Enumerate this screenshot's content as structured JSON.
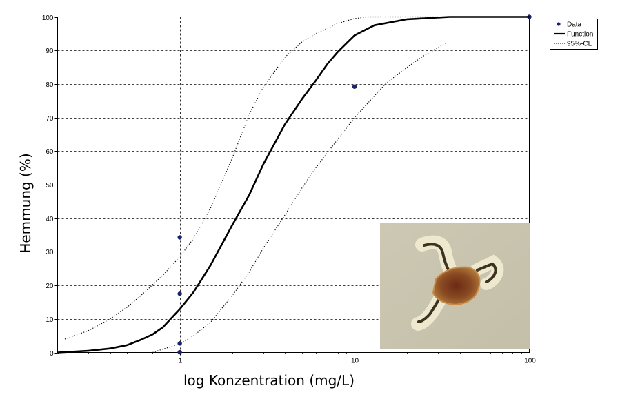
{
  "chart_data": {
    "type": "scatter",
    "xlabel": "log Konzentration (mg/L)",
    "ylabel": "Hemmung (%)",
    "x_scale": "log",
    "xlim": [
      0.2,
      100
    ],
    "ylim": [
      0,
      100
    ],
    "grid": true,
    "legend_position": "top-right",
    "x_ticks": [
      {
        "value": 1,
        "label": "1"
      },
      {
        "value": 10,
        "label": "10"
      },
      {
        "value": 100,
        "label": "100"
      }
    ],
    "y_ticks": [
      {
        "value": 0,
        "label": "0"
      },
      {
        "value": 10,
        "label": "10"
      },
      {
        "value": 20,
        "label": "20"
      },
      {
        "value": 30,
        "label": "30"
      },
      {
        "value": 40,
        "label": "40"
      },
      {
        "value": 50,
        "label": "50"
      },
      {
        "value": 60,
        "label": "60"
      },
      {
        "value": 70,
        "label": "70"
      },
      {
        "value": 80,
        "label": "80"
      },
      {
        "value": 90,
        "label": "90"
      },
      {
        "value": 100,
        "label": "100"
      }
    ],
    "legend": [
      {
        "label": "Data",
        "style": "marker"
      },
      {
        "label": "Function",
        "style": "solid"
      },
      {
        "label": "95%-CL",
        "style": "dotted"
      }
    ],
    "series": [
      {
        "name": "Data",
        "kind": "points",
        "color": "#1a2470",
        "points": [
          {
            "x": 1,
            "y": 34.3
          },
          {
            "x": 1,
            "y": 17.5
          },
          {
            "x": 1,
            "y": 2.7
          },
          {
            "x": 1,
            "y": 0.1
          },
          {
            "x": 10,
            "y": 79.2
          },
          {
            "x": 100,
            "y": 100
          }
        ]
      },
      {
        "name": "Function",
        "kind": "line",
        "color": "#000000",
        "points": [
          {
            "x": 0.2,
            "y": 0
          },
          {
            "x": 0.3,
            "y": 0.5
          },
          {
            "x": 0.4,
            "y": 1.2
          },
          {
            "x": 0.5,
            "y": 2.2
          },
          {
            "x": 0.6,
            "y": 3.8
          },
          {
            "x": 0.7,
            "y": 5.4
          },
          {
            "x": 0.8,
            "y": 7.5
          },
          {
            "x": 1.0,
            "y": 12.9
          },
          {
            "x": 1.2,
            "y": 18
          },
          {
            "x": 1.5,
            "y": 26
          },
          {
            "x": 2.0,
            "y": 38
          },
          {
            "x": 2.5,
            "y": 47
          },
          {
            "x": 3.0,
            "y": 56
          },
          {
            "x": 4.0,
            "y": 68
          },
          {
            "x": 5.0,
            "y": 75.5
          },
          {
            "x": 6.0,
            "y": 81
          },
          {
            "x": 7.0,
            "y": 86
          },
          {
            "x": 8.0,
            "y": 89.5
          },
          {
            "x": 10,
            "y": 94.5
          },
          {
            "x": 13,
            "y": 97.5
          },
          {
            "x": 20,
            "y": 99.3
          },
          {
            "x": 35,
            "y": 100
          },
          {
            "x": 100,
            "y": 100
          }
        ]
      },
      {
        "name": "95%-CL upper",
        "kind": "dotted",
        "color": "#000000",
        "points": [
          {
            "x": 0.22,
            "y": 4
          },
          {
            "x": 0.3,
            "y": 6.5
          },
          {
            "x": 0.4,
            "y": 10
          },
          {
            "x": 0.5,
            "y": 13.5
          },
          {
            "x": 0.6,
            "y": 17
          },
          {
            "x": 0.8,
            "y": 23
          },
          {
            "x": 1.0,
            "y": 28.5
          },
          {
            "x": 1.2,
            "y": 34
          },
          {
            "x": 1.5,
            "y": 43
          },
          {
            "x": 2.0,
            "y": 58
          },
          {
            "x": 2.5,
            "y": 71
          },
          {
            "x": 3.0,
            "y": 79
          },
          {
            "x": 4.0,
            "y": 88
          },
          {
            "x": 5.0,
            "y": 92.5
          },
          {
            "x": 6.0,
            "y": 95
          },
          {
            "x": 8.0,
            "y": 98
          },
          {
            "x": 10,
            "y": 99.5
          },
          {
            "x": 12,
            "y": 100
          },
          {
            "x": 30,
            "y": 100
          }
        ]
      },
      {
        "name": "95%-CL lower",
        "kind": "dotted",
        "color": "#000000",
        "points": [
          {
            "x": 0.7,
            "y": 0
          },
          {
            "x": 0.8,
            "y": 1
          },
          {
            "x": 1.0,
            "y": 2.5
          },
          {
            "x": 1.2,
            "y": 5
          },
          {
            "x": 1.5,
            "y": 9
          },
          {
            "x": 2.0,
            "y": 17
          },
          {
            "x": 2.5,
            "y": 24
          },
          {
            "x": 3.0,
            "y": 31
          },
          {
            "x": 4.0,
            "y": 41
          },
          {
            "x": 5.0,
            "y": 49
          },
          {
            "x": 6.0,
            "y": 55
          },
          {
            "x": 7.0,
            "y": 59.5
          },
          {
            "x": 8.0,
            "y": 63.5
          },
          {
            "x": 10,
            "y": 70
          },
          {
            "x": 15,
            "y": 80
          },
          {
            "x": 20,
            "y": 85
          },
          {
            "x": 25,
            "y": 88.5
          },
          {
            "x": 33,
            "y": 92
          }
        ]
      }
    ]
  },
  "inset_image": {
    "subject": "micro-organism with four arms and dark brown body"
  }
}
